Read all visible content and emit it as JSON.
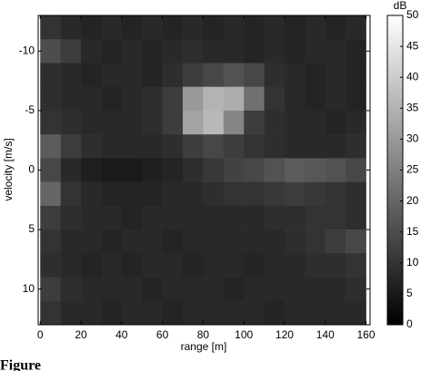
{
  "chart_data": {
    "type": "heatmap",
    "x_label": "range [m]",
    "y_label": "velocity [m/s]",
    "colorbar_label": "dB",
    "x": [
      5,
      15,
      25,
      35,
      45,
      55,
      65,
      75,
      85,
      95,
      105,
      115,
      125,
      135,
      145,
      155
    ],
    "y": [
      -12,
      -10,
      -8,
      -6,
      -4,
      -2,
      0,
      2,
      4,
      6,
      8,
      10,
      12
    ],
    "z": [
      [
        10,
        8,
        7,
        8,
        7,
        8,
        7,
        8,
        7,
        8,
        7,
        8,
        7,
        8,
        7,
        8
      ],
      [
        15,
        12,
        8,
        7,
        8,
        7,
        8,
        9,
        8,
        8,
        7,
        8,
        7,
        8,
        8,
        7
      ],
      [
        9,
        8,
        7,
        8,
        8,
        7,
        9,
        12,
        14,
        16,
        14,
        9,
        8,
        7,
        8,
        7
      ],
      [
        9,
        8,
        8,
        7,
        8,
        9,
        12,
        30,
        35,
        34,
        22,
        10,
        8,
        7,
        8,
        7
      ],
      [
        10,
        9,
        8,
        8,
        8,
        9,
        12,
        32,
        36,
        26,
        12,
        9,
        8,
        8,
        7,
        8
      ],
      [
        18,
        12,
        9,
        8,
        8,
        8,
        9,
        12,
        14,
        12,
        10,
        9,
        8,
        8,
        8,
        9
      ],
      [
        14,
        8,
        6,
        5,
        5,
        6,
        7,
        9,
        11,
        13,
        14,
        16,
        18,
        17,
        16,
        14
      ],
      [
        20,
        10,
        8,
        7,
        7,
        7,
        8,
        8,
        9,
        10,
        10,
        11,
        12,
        11,
        10,
        9
      ],
      [
        12,
        9,
        8,
        8,
        7,
        8,
        8,
        8,
        8,
        8,
        8,
        9,
        9,
        10,
        10,
        9
      ],
      [
        10,
        8,
        8,
        7,
        8,
        8,
        7,
        8,
        8,
        8,
        8,
        8,
        9,
        10,
        12,
        14
      ],
      [
        9,
        8,
        7,
        8,
        7,
        8,
        8,
        7,
        8,
        8,
        7,
        8,
        8,
        9,
        9,
        10
      ],
      [
        12,
        9,
        8,
        8,
        8,
        7,
        8,
        8,
        8,
        7,
        8,
        8,
        8,
        8,
        8,
        9
      ],
      [
        10,
        8,
        8,
        7,
        8,
        8,
        7,
        8,
        8,
        8,
        8,
        7,
        8,
        8,
        8,
        8
      ]
    ],
    "xlim": [
      -1,
      162
    ],
    "xticks": [
      0,
      20,
      40,
      60,
      80,
      100,
      120,
      140,
      160
    ],
    "ylim": [
      -13,
      13
    ],
    "yticks": [
      -10,
      -5,
      0,
      5,
      10
    ],
    "y_inverted": true,
    "clim": [
      0,
      50
    ],
    "cticks": [
      0,
      5,
      10,
      15,
      20,
      25,
      30,
      35,
      40,
      45,
      50
    ],
    "colormap": "gray"
  },
  "caption": "Figure"
}
